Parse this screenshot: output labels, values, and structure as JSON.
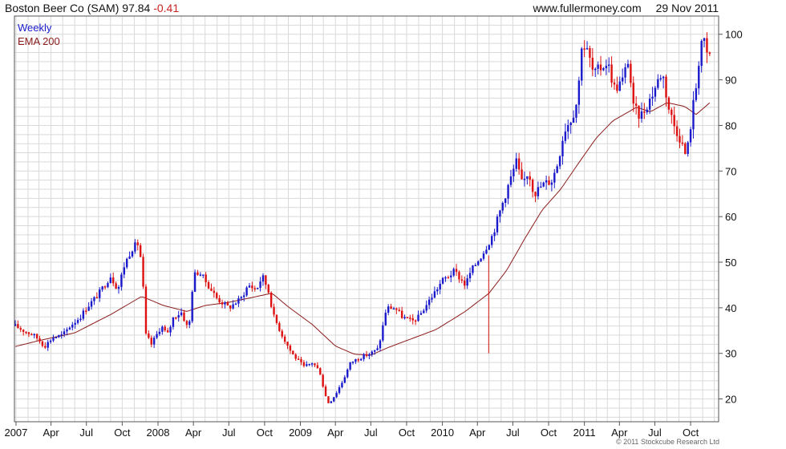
{
  "header": {
    "ticker": "Boston Beer Co (SAM)",
    "price": "97.84",
    "change": "-0.41",
    "site": "www.fullermoney.com",
    "date": "29 Nov 2011"
  },
  "footer": {
    "copyright": "© 2011 Stockcube Research Ltd"
  },
  "colors": {
    "up": "#1a1acc",
    "down": "#dd1111",
    "ema": "#8b1a1a",
    "grid": "#d9d9d9",
    "text": "#111111"
  },
  "chart_data": {
    "type": "candlestick",
    "title": "Boston Beer Co (SAM)",
    "ylim": [
      15,
      104
    ],
    "yticks": [
      20,
      30,
      40,
      50,
      60,
      70,
      80,
      90,
      100
    ],
    "grid": true,
    "legend_position": "top-left",
    "x_tick_labels": [
      "2007",
      "Apr",
      "Jul",
      "Oct",
      "2008",
      "Apr",
      "Jul",
      "Oct",
      "2009",
      "Apr",
      "Jul",
      "Oct",
      "2010",
      "Apr",
      "Jul",
      "Oct",
      "2011",
      "Apr",
      "Jul",
      "Oct"
    ],
    "series": [
      {
        "name": "Weekly",
        "kind": "price"
      },
      {
        "name": "EMA 200",
        "kind": "ema"
      }
    ],
    "price_anchors": [
      [
        "2006-12-30",
        36
      ],
      [
        "2007-01-20",
        35
      ],
      [
        "2007-02-15",
        34
      ],
      [
        "2007-03-01",
        33
      ],
      [
        "2007-03-15",
        31.5
      ],
      [
        "2007-04-05",
        33.5
      ],
      [
        "2007-05-01",
        34
      ],
      [
        "2007-05-20",
        36
      ],
      [
        "2007-06-15",
        38
      ],
      [
        "2007-07-01",
        40
      ],
      [
        "2007-08-01",
        43
      ],
      [
        "2007-09-01",
        47
      ],
      [
        "2007-09-20",
        44
      ],
      [
        "2007-10-05",
        49
      ],
      [
        "2007-10-25",
        53
      ],
      [
        "2007-11-10",
        54
      ],
      [
        "2007-11-20",
        50
      ],
      [
        "2007-12-01",
        34
      ],
      [
        "2007-12-15",
        32
      ],
      [
        "2008-01-10",
        36
      ],
      [
        "2008-01-25",
        34
      ],
      [
        "2008-02-10",
        38
      ],
      [
        "2008-03-01",
        39
      ],
      [
        "2008-03-20",
        35
      ],
      [
        "2008-04-01",
        47
      ],
      [
        "2008-04-15",
        48
      ],
      [
        "2008-05-01",
        46
      ],
      [
        "2008-06-01",
        42
      ],
      [
        "2008-07-01",
        40
      ],
      [
        "2008-08-01",
        42
      ],
      [
        "2008-08-20",
        45
      ],
      [
        "2008-09-10",
        44
      ],
      [
        "2008-09-25",
        47
      ],
      [
        "2008-10-10",
        44
      ],
      [
        "2008-10-25",
        38
      ],
      [
        "2008-11-15",
        34
      ],
      [
        "2008-12-10",
        30
      ],
      [
        "2009-01-10",
        27
      ],
      [
        "2009-02-01",
        28
      ],
      [
        "2009-02-20",
        26
      ],
      [
        "2009-03-05",
        21
      ],
      [
        "2009-03-15",
        19
      ],
      [
        "2009-04-01",
        21
      ],
      [
        "2009-04-20",
        24
      ],
      [
        "2009-05-10",
        28
      ],
      [
        "2009-06-01",
        29
      ],
      [
        "2009-07-01",
        30
      ],
      [
        "2009-07-20",
        31
      ],
      [
        "2009-08-01",
        36
      ],
      [
        "2009-08-10",
        40
      ],
      [
        "2009-09-01",
        40
      ],
      [
        "2009-09-20",
        38
      ],
      [
        "2009-10-15",
        37
      ],
      [
        "2009-11-01",
        38
      ],
      [
        "2009-12-01",
        42
      ],
      [
        "2010-01-01",
        46
      ],
      [
        "2010-02-01",
        48
      ],
      [
        "2010-03-01",
        45
      ],
      [
        "2010-03-15",
        48
      ],
      [
        "2010-04-15",
        52
      ],
      [
        "2010-05-10",
        56
      ],
      [
        "2010-06-01",
        62
      ],
      [
        "2010-06-20",
        67
      ],
      [
        "2010-07-10",
        72
      ],
      [
        "2010-07-25",
        67
      ],
      [
        "2010-08-10",
        70
      ],
      [
        "2010-08-25",
        65
      ],
      [
        "2010-09-15",
        67
      ],
      [
        "2010-10-10",
        68
      ],
      [
        "2010-10-25",
        72
      ],
      [
        "2010-11-10",
        79
      ],
      [
        "2010-12-01",
        82
      ],
      [
        "2010-12-15",
        86
      ],
      [
        "2010-12-25",
        98
      ],
      [
        "2011-01-10",
        96
      ],
      [
        "2011-01-25",
        91
      ],
      [
        "2011-02-15",
        93
      ],
      [
        "2011-03-01",
        94
      ],
      [
        "2011-03-20",
        88
      ],
      [
        "2011-04-10",
        90
      ],
      [
        "2011-04-25",
        95
      ],
      [
        "2011-05-05",
        84
      ],
      [
        "2011-05-25",
        82
      ],
      [
        "2011-06-20",
        86
      ],
      [
        "2011-07-10",
        90
      ],
      [
        "2011-07-20",
        92
      ],
      [
        "2011-08-05",
        84
      ],
      [
        "2011-08-20",
        80
      ],
      [
        "2011-09-05",
        77
      ],
      [
        "2011-09-20",
        73
      ],
      [
        "2011-10-01",
        80
      ],
      [
        "2011-10-10",
        86
      ],
      [
        "2011-10-20",
        91
      ],
      [
        "2011-10-25",
        99
      ],
      [
        "2011-11-05",
        98
      ],
      [
        "2011-11-15",
        94
      ],
      [
        "2011-11-25",
        97.84
      ]
    ],
    "ema_anchors": [
      [
        "2006-12-30",
        31.5
      ],
      [
        "2007-03-01",
        32.8
      ],
      [
        "2007-06-01",
        34.5
      ],
      [
        "2007-09-01",
        38.5
      ],
      [
        "2007-11-20",
        42.5
      ],
      [
        "2008-01-15",
        40.5
      ],
      [
        "2008-03-15",
        39.2
      ],
      [
        "2008-05-01",
        40.5
      ],
      [
        "2008-07-01",
        41.2
      ],
      [
        "2008-09-01",
        42.3
      ],
      [
        "2008-10-20",
        43.2
      ],
      [
        "2008-12-01",
        40.2
      ],
      [
        "2009-02-01",
        36.3
      ],
      [
        "2009-04-01",
        31.6
      ],
      [
        "2009-05-20",
        29.8
      ],
      [
        "2009-07-01",
        29.6
      ],
      [
        "2009-08-15",
        31.3
      ],
      [
        "2009-10-01",
        32.8
      ],
      [
        "2009-12-15",
        35.2
      ],
      [
        "2010-03-01",
        39.2
      ],
      [
        "2010-05-01",
        43.2
      ],
      [
        "2010-06-15",
        48.2
      ],
      [
        "2010-08-01",
        55.2
      ],
      [
        "2010-09-15",
        61.5
      ],
      [
        "2010-11-01",
        66.0
      ],
      [
        "2010-12-15",
        71.5
      ],
      [
        "2011-02-01",
        77.3
      ],
      [
        "2011-03-15",
        81.0
      ],
      [
        "2011-05-15",
        84.0
      ],
      [
        "2011-06-20",
        83.0
      ],
      [
        "2011-08-01",
        85.0
      ],
      [
        "2011-09-15",
        84.2
      ],
      [
        "2011-10-15",
        82.4
      ],
      [
        "2011-11-25",
        85.4
      ]
    ],
    "annotations": [
      {
        "type": "spike",
        "date": "2010-04-30",
        "low": 30,
        "high": 51.5,
        "color": "down"
      }
    ]
  }
}
